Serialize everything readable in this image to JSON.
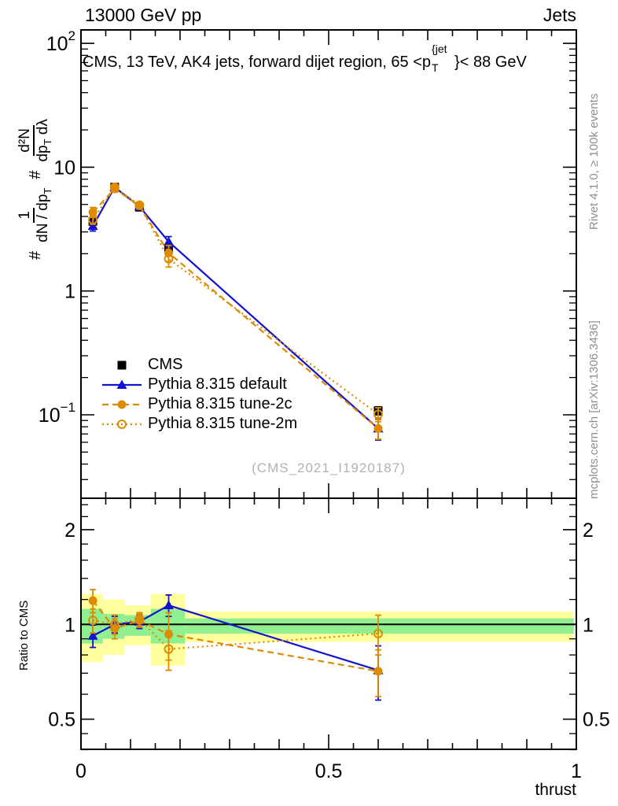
{
  "header": {
    "left": "13000 GeV pp",
    "right": "Jets"
  },
  "plot_title": {
    "pre": "CMS, 13 TeV, AK4 jets, forward dijet region, 65 <p",
    "sup": "{jet",
    "sub": "T",
    "post": "}< 88 GeV"
  },
  "ylabel_parts": {
    "hash1": "#",
    "frac1_num": "1",
    "frac1_den_a": "dN / dp",
    "frac1_den_sub": "T",
    "hash2": "#",
    "frac2_num": "d²N",
    "frac2_den_a": "dp",
    "frac2_den_sub": "T",
    "frac2_den_b": " dλ"
  },
  "watermark": "(CMS_2021_I1920187)",
  "right_margin": {
    "top": "Rivet 4.1.0, ≥ 100k events",
    "bottom": "mcplots.cern.ch [arXiv:1306.3436]"
  },
  "ratio_label": "Ratio to CMS",
  "xlabel": "thrust",
  "colors": {
    "cms": "#000000",
    "pythia_default": "#1212d0",
    "pythia_tunes": "#dd8b00",
    "band_yellow": "#ffff9e",
    "band_green": "#90f090",
    "frame": "#000000",
    "gray_text": "#8f8f8f"
  },
  "chart_data": {
    "type": "line",
    "title": "CMS, 13 TeV, AK4 jets, forward dijet region, 65 < p_T^{jet} < 88 GeV",
    "xlabel": "thrust",
    "ylabel": "# 1/(dN/dp_T) d²N/(dp_T dλ)",
    "ratio_ylabel": "Ratio to CMS",
    "x_range": [
      0,
      1
    ],
    "y_scale": "log",
    "y_range_main": [
      0.0215,
      128
    ],
    "ratio_y_range": [
      0.4,
      2.53
    ],
    "grid": false,
    "legend_position": "center-left",
    "x_ticks": [
      {
        "v": 0,
        "label": "0"
      },
      {
        "v": 0.5,
        "label": "0.5"
      },
      {
        "v": 1,
        "label": "1"
      }
    ],
    "y_ticks_main": [
      {
        "v": 100,
        "label": "10",
        "exp": "2"
      },
      {
        "v": 10,
        "label": "10",
        "exp": ""
      },
      {
        "v": 1,
        "label": "1",
        "exp": ""
      },
      {
        "v": 0.1,
        "label": "10",
        "exp": "−1"
      }
    ],
    "ratio_ticks": [
      {
        "v": 2,
        "label": "2"
      },
      {
        "v": 1,
        "label": "1"
      },
      {
        "v": 0.5,
        "label": "0.5"
      }
    ],
    "x": [
      0.024,
      0.068,
      0.118,
      0.177,
      0.6
    ],
    "series": [
      {
        "name": "CMS",
        "marker": "square",
        "line": "none",
        "color": "#000000",
        "values": [
          3.65,
          6.9,
          4.75,
          2.18,
          0.108
        ],
        "errors": [
          0.2,
          0.3,
          0.22,
          0.12,
          0.008
        ]
      },
      {
        "name": "Pythia 8.315 default",
        "marker": "triangle",
        "line": "solid",
        "color": "#1212d0",
        "values": [
          3.35,
          6.88,
          4.82,
          2.5,
          0.0775
        ],
        "errors": [
          0.3,
          0.4,
          0.28,
          0.25,
          0.015
        ],
        "ratio": [
          0.92,
          1.0,
          1.02,
          1.15,
          0.715
        ],
        "ratio_errors": [
          0.075,
          0.06,
          0.05,
          0.09,
          0.14
        ]
      },
      {
        "name": "Pythia 8.315 tune-2c",
        "marker": "circle-filled",
        "line": "dashed",
        "color": "#dd8b00",
        "values": [
          4.33,
          6.68,
          4.88,
          2.03,
          0.0775
        ],
        "errors": [
          0.4,
          0.4,
          0.28,
          0.3,
          0.014
        ],
        "ratio": [
          1.19,
          0.97,
          1.03,
          0.93,
          0.71
        ],
        "ratio_errors": [
          0.1,
          0.07,
          0.05,
          0.16,
          0.12
        ]
      },
      {
        "name": "Pythia 8.315 tune-2m",
        "marker": "circle-open",
        "line": "dotted",
        "color": "#dd8b00",
        "values": [
          3.76,
          6.88,
          4.94,
          1.82,
          0.101
        ],
        "errors": [
          0.3,
          0.4,
          0.28,
          0.26,
          0.013
        ],
        "ratio": [
          1.03,
          1.0,
          1.04,
          0.835,
          0.935
        ],
        "ratio_errors": [
          0.09,
          0.07,
          0.05,
          0.12,
          0.135
        ]
      }
    ],
    "bands": {
      "edges": [
        0,
        0.044,
        0.088,
        0.141,
        0.21,
        0.995
      ],
      "yellow": [
        [
          0.76,
          1.25
        ],
        [
          0.8,
          1.2
        ],
        [
          0.86,
          1.15
        ],
        [
          0.74,
          1.25
        ],
        [
          0.88,
          1.1
        ]
      ],
      "green": [
        [
          0.87,
          1.12
        ],
        [
          0.9,
          1.08
        ],
        [
          0.92,
          1.07
        ],
        [
          0.87,
          1.12
        ],
        [
          0.935,
          1.045
        ]
      ]
    }
  }
}
